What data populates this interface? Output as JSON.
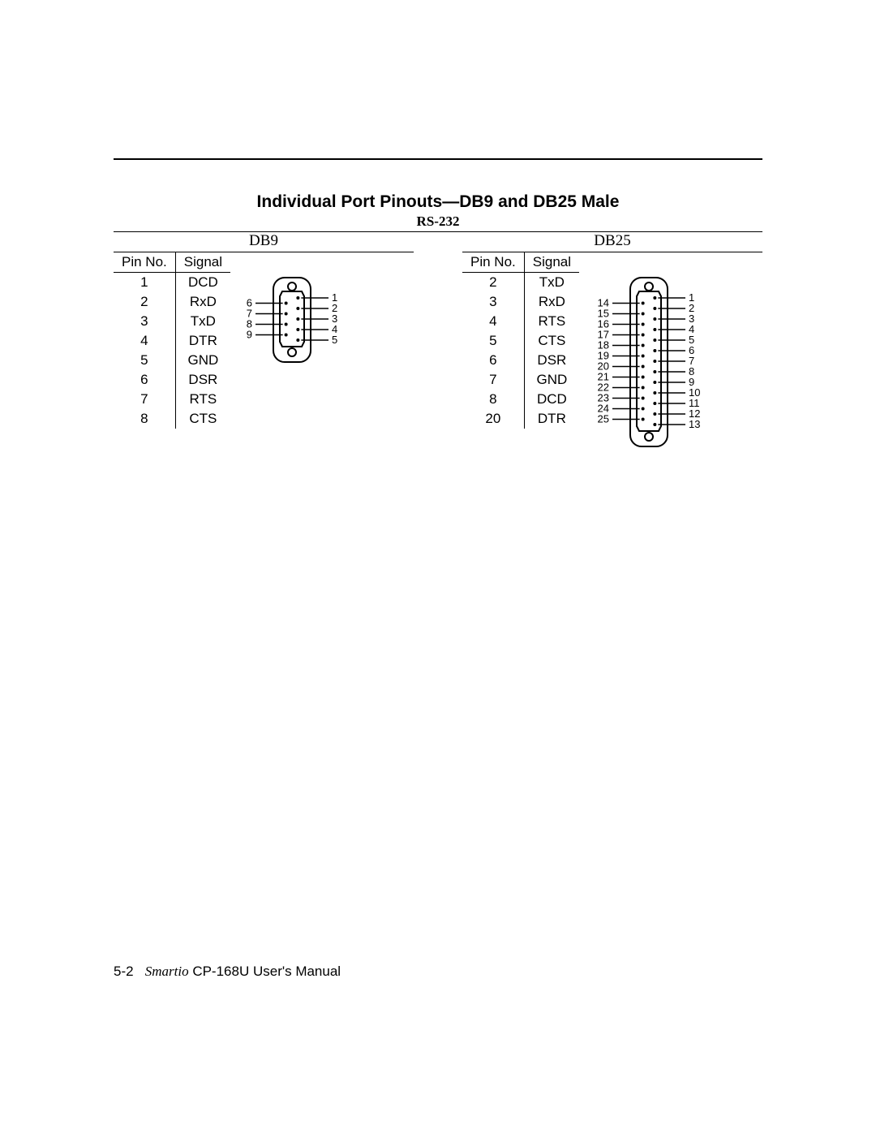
{
  "title": "Individual Port Pinouts—DB9 and DB25 Male",
  "subtitle": "RS-232",
  "colors": {
    "text": "#000000",
    "background": "#ffffff",
    "line": "#000000"
  },
  "db9": {
    "label": "DB9",
    "headers": {
      "pin": "Pin No.",
      "signal": "Signal"
    },
    "rows": [
      {
        "pin": "1",
        "signal": "DCD"
      },
      {
        "pin": "2",
        "signal": "RxD"
      },
      {
        "pin": "3",
        "signal": "TxD"
      },
      {
        "pin": "4",
        "signal": "DTR"
      },
      {
        "pin": "5",
        "signal": "GND"
      },
      {
        "pin": "6",
        "signal": "DSR"
      },
      {
        "pin": "7",
        "signal": "RTS"
      },
      {
        "pin": "8",
        "signal": "CTS"
      }
    ],
    "diagram": {
      "left_labels": [
        "6",
        "7",
        "8",
        "9"
      ],
      "right_labels": [
        "1",
        "2",
        "3",
        "4",
        "5"
      ],
      "stroke_width": 2,
      "pin_radius": 2,
      "screw_radius": 5,
      "font_size": 13
    }
  },
  "db25": {
    "label": "DB25",
    "headers": {
      "pin": "Pin No.",
      "signal": "Signal"
    },
    "rows": [
      {
        "pin": "2",
        "signal": "TxD"
      },
      {
        "pin": "3",
        "signal": "RxD"
      },
      {
        "pin": "4",
        "signal": "RTS"
      },
      {
        "pin": "5",
        "signal": "CTS"
      },
      {
        "pin": "6",
        "signal": "DSR"
      },
      {
        "pin": "7",
        "signal": "GND"
      },
      {
        "pin": "8",
        "signal": "DCD"
      },
      {
        "pin": "20",
        "signal": "DTR"
      }
    ],
    "diagram": {
      "left_labels": [
        "14",
        "15",
        "16",
        "17",
        "18",
        "19",
        "20",
        "21",
        "22",
        "23",
        "24",
        "25"
      ],
      "right_labels": [
        "1",
        "2",
        "3",
        "4",
        "5",
        "6",
        "7",
        "8",
        "9",
        "10",
        "11",
        "12",
        "13"
      ],
      "stroke_width": 2,
      "pin_radius": 2,
      "screw_radius": 5,
      "font_size": 13
    }
  },
  "footer": {
    "pagenum": "5-2",
    "brand": "Smartio",
    "manual": " CP-168U User's Manual"
  }
}
